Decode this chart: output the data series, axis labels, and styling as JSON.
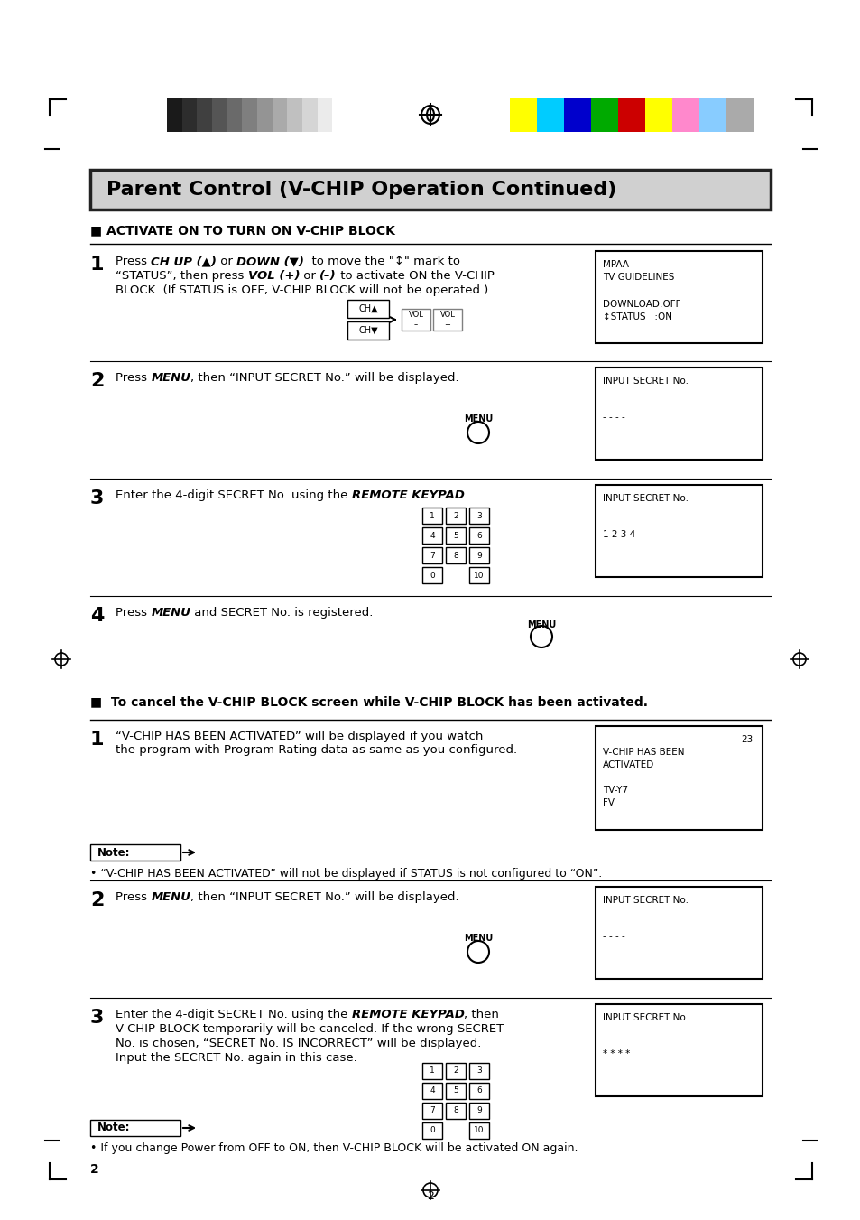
{
  "title": "Parent Control (V-CHIP Operation Continued)",
  "bg_color": "#ffffff",
  "section1_header": "■ ACTIVATE ON TO TURN ON V-CHIP BLOCK",
  "section2_header": "■  To cancel the V-CHIP BLOCK screen while V-CHIP BLOCK has been activated.",
  "note1_text": "• “V-CHIP HAS BEEN ACTIVATED” will not be displayed if STATUS is not configured to “ON”.",
  "note2_text": "• If you change Power from OFF to ON, then V-CHIP BLOCK will be activated ON again.",
  "footer_num": "2",
  "color_bar_left": [
    "#1a1a1a",
    "#2d2d2d",
    "#404040",
    "#555555",
    "#6a6a6a",
    "#7f7f7f",
    "#949494",
    "#aaaaaa",
    "#c0c0c0",
    "#d5d5d5",
    "#ebebeb",
    "#ffffff"
  ],
  "color_bar_right": [
    "#ffff00",
    "#00ccff",
    "#0000cc",
    "#00aa00",
    "#cc0000",
    "#ffff00",
    "#ff88cc",
    "#88ccff",
    "#aaaaaa"
  ]
}
